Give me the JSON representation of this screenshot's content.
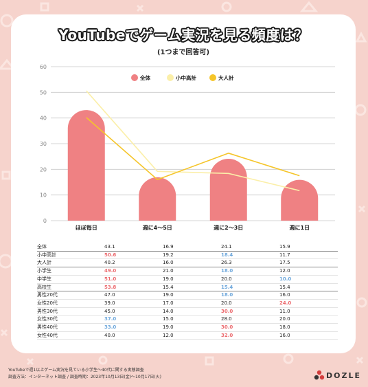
{
  "title": "YouTubeでゲーム実況を見る頻度は？",
  "subtitle": "(1つまで回答可)",
  "chart_data": {
    "type": "bar",
    "categories": [
      "ほぼ毎日",
      "週に4〜5日",
      "週に2〜3日",
      "週に1日"
    ],
    "ylim": [
      0,
      60
    ],
    "yticks": [
      0,
      10,
      20,
      30,
      40,
      50,
      60
    ],
    "grid": true,
    "legend_placement": "top-center",
    "series": [
      {
        "name": "全体",
        "kind": "bar",
        "color": "#ef8183",
        "values": [
          43.1,
          16.9,
          24.1,
          15.9
        ]
      },
      {
        "name": "小中高計",
        "kind": "line",
        "color": "#fbefa9",
        "values": [
          50.6,
          19.2,
          18.4,
          11.7
        ]
      },
      {
        "name": "大人計",
        "kind": "line",
        "color": "#f5c52a",
        "values": [
          40.2,
          16.0,
          26.3,
          17.5
        ]
      }
    ]
  },
  "table": {
    "rows": [
      {
        "label": "全体",
        "values": [
          "43.1",
          "16.9",
          "24.1",
          "15.9"
        ],
        "hi": [
          "",
          "",
          "",
          ""
        ],
        "group_end": true
      },
      {
        "label": "小中高計",
        "values": [
          "50.6",
          "19.2",
          "18.4",
          "11.7"
        ],
        "hi": [
          "red",
          "",
          "blue",
          ""
        ],
        "group_end": false
      },
      {
        "label": "大人計",
        "values": [
          "40.2",
          "16.0",
          "26.3",
          "17.5"
        ],
        "hi": [
          "",
          "",
          "",
          ""
        ],
        "group_end": true
      },
      {
        "label": "小学生",
        "values": [
          "49.0",
          "21.0",
          "18.0",
          "12.0"
        ],
        "hi": [
          "red",
          "",
          "blue",
          ""
        ],
        "group_end": false
      },
      {
        "label": "中学生",
        "values": [
          "51.0",
          "19.0",
          "20.0",
          "10.0"
        ],
        "hi": [
          "red",
          "",
          "",
          "blue"
        ],
        "group_end": false
      },
      {
        "label": "高校生",
        "values": [
          "53.8",
          "15.4",
          "15.4",
          "15.4"
        ],
        "hi": [
          "red",
          "",
          "blue",
          ""
        ],
        "group_end": true
      },
      {
        "label": "男性20代",
        "values": [
          "47.0",
          "19.0",
          "18.0",
          "16.0"
        ],
        "hi": [
          "",
          "",
          "blue",
          ""
        ],
        "group_end": false
      },
      {
        "label": "女性20代",
        "values": [
          "39.0",
          "17.0",
          "20.0",
          "24.0"
        ],
        "hi": [
          "",
          "",
          "",
          "red"
        ],
        "group_end": false
      },
      {
        "label": "男性30代",
        "values": [
          "45.0",
          "14.0",
          "30.0",
          "11.0"
        ],
        "hi": [
          "",
          "",
          "red",
          ""
        ],
        "group_end": false
      },
      {
        "label": "女性30代",
        "values": [
          "37.0",
          "15.0",
          "28.0",
          "20.0"
        ],
        "hi": [
          "blue",
          "",
          "",
          ""
        ],
        "group_end": false
      },
      {
        "label": "男性40代",
        "values": [
          "33.0",
          "19.0",
          "30.0",
          "18.0"
        ],
        "hi": [
          "blue",
          "",
          "red",
          ""
        ],
        "group_end": false
      },
      {
        "label": "女性40代",
        "values": [
          "40.0",
          "12.0",
          "32.0",
          "16.0"
        ],
        "hi": [
          "",
          "",
          "red",
          ""
        ],
        "group_end": false
      }
    ]
  },
  "footer": {
    "line1": "YouTubeで週1以上ゲーム実況を見ている小学生〜40代に関する実態調査",
    "line2": "調査方法：インターネット調査 / 調査時期：2023年10月13日(金)〜10月17日(火)"
  },
  "logo": {
    "text": "DOZLE"
  },
  "colors": {
    "background": "#f6d3cc",
    "bar": "#ef8183",
    "highlight_red": "#ec6b6f",
    "highlight_blue": "#6fa8dc"
  }
}
